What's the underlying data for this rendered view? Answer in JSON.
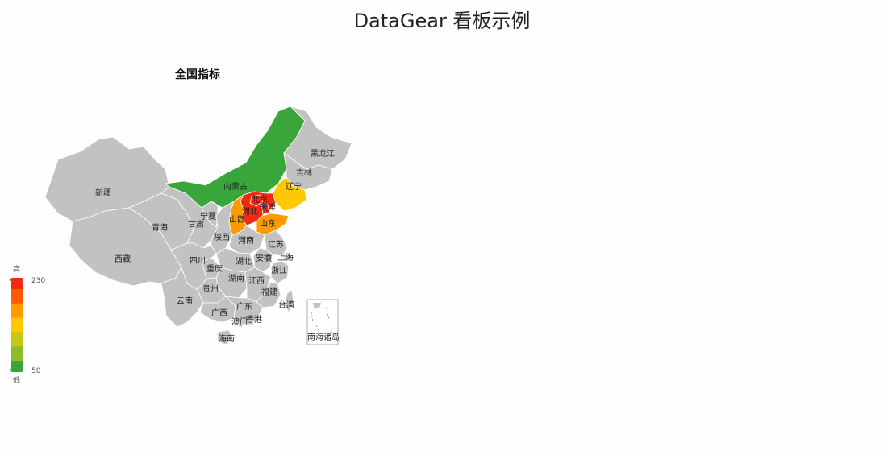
{
  "page": {
    "title": "DataGear 看板示例"
  },
  "map": {
    "title": "全国指标",
    "inset_label": "南海诸岛",
    "visual_map": {
      "min": 50,
      "max": 230,
      "text_high": "高",
      "text_low": "低",
      "colors": [
        "#3aa53a",
        "#8ebd27",
        "#c6c617",
        "#ffc800",
        "#ff9a00",
        "#ff5a00",
        "#ee2a12"
      ]
    },
    "default_color": "#c2c2c2",
    "regions": [
      {
        "name": "新疆"
      },
      {
        "name": "西藏"
      },
      {
        "name": "青海"
      },
      {
        "name": "甘肃"
      },
      {
        "name": "宁夏"
      },
      {
        "name": "内蒙古",
        "value": 60
      },
      {
        "name": "黑龙江"
      },
      {
        "name": "吉林"
      },
      {
        "name": "辽宁",
        "value": 130
      },
      {
        "name": "北京",
        "value": 220
      },
      {
        "name": "天津",
        "value": 220
      },
      {
        "name": "河北",
        "value": 230
      },
      {
        "name": "山西",
        "value": 180
      },
      {
        "name": "山东",
        "value": 175
      },
      {
        "name": "陕西"
      },
      {
        "name": "河南"
      },
      {
        "name": "江苏"
      },
      {
        "name": "安徽"
      },
      {
        "name": "上海"
      },
      {
        "name": "浙江"
      },
      {
        "name": "湖北"
      },
      {
        "name": "四川"
      },
      {
        "name": "重庆"
      },
      {
        "name": "湖南"
      },
      {
        "name": "江西"
      },
      {
        "name": "福建"
      },
      {
        "name": "贵州"
      },
      {
        "name": "云南"
      },
      {
        "name": "广西"
      },
      {
        "name": "广东"
      },
      {
        "name": "香港"
      },
      {
        "name": "澳门"
      },
      {
        "name": "海南"
      },
      {
        "name": "台湾"
      }
    ]
  }
}
